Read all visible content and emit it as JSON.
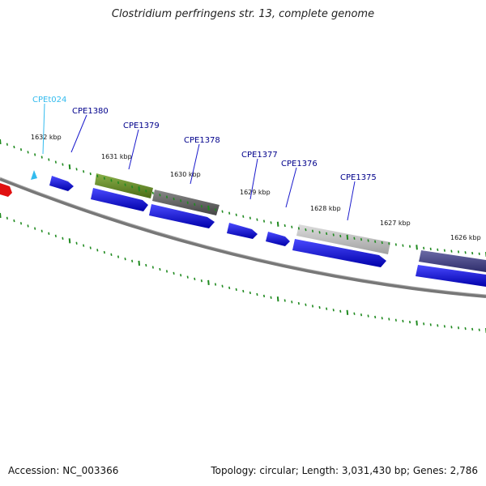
{
  "title": "Clostridium perfringens str. 13, complete genome",
  "footer": {
    "accession": "Accession: NC_003366",
    "summary": "Topology: circular; Length: 3,031,430 bp; Genes: 2,786"
  },
  "colors": {
    "backbone": "#777777",
    "cds": "#1a1acc",
    "trna": "#33bbee",
    "tick": "#1f8a1f",
    "label_cds": "#00008b",
    "label_trna": "#33bbee"
  },
  "kbp_labels": [
    "1632 kbp",
    "1631 kbp",
    "1630 kbp",
    "1629 kbp",
    "1628 kbp",
    "1627 kbp",
    "1626 kbp"
  ],
  "gene_labels": [
    {
      "text": "CPEt024",
      "kind": "trna"
    },
    {
      "text": "CPE1380",
      "kind": "cds"
    },
    {
      "text": "CPE1379",
      "kind": "cds"
    },
    {
      "text": "CPE1378",
      "kind": "cds"
    },
    {
      "text": "CPE1377",
      "kind": "cds"
    },
    {
      "text": "CPE1376",
      "kind": "cds"
    },
    {
      "text": "CPE1375",
      "kind": "cds"
    }
  ],
  "legend_icons": [
    "trna-arrow-icon",
    "cds-arrow-icon"
  ]
}
